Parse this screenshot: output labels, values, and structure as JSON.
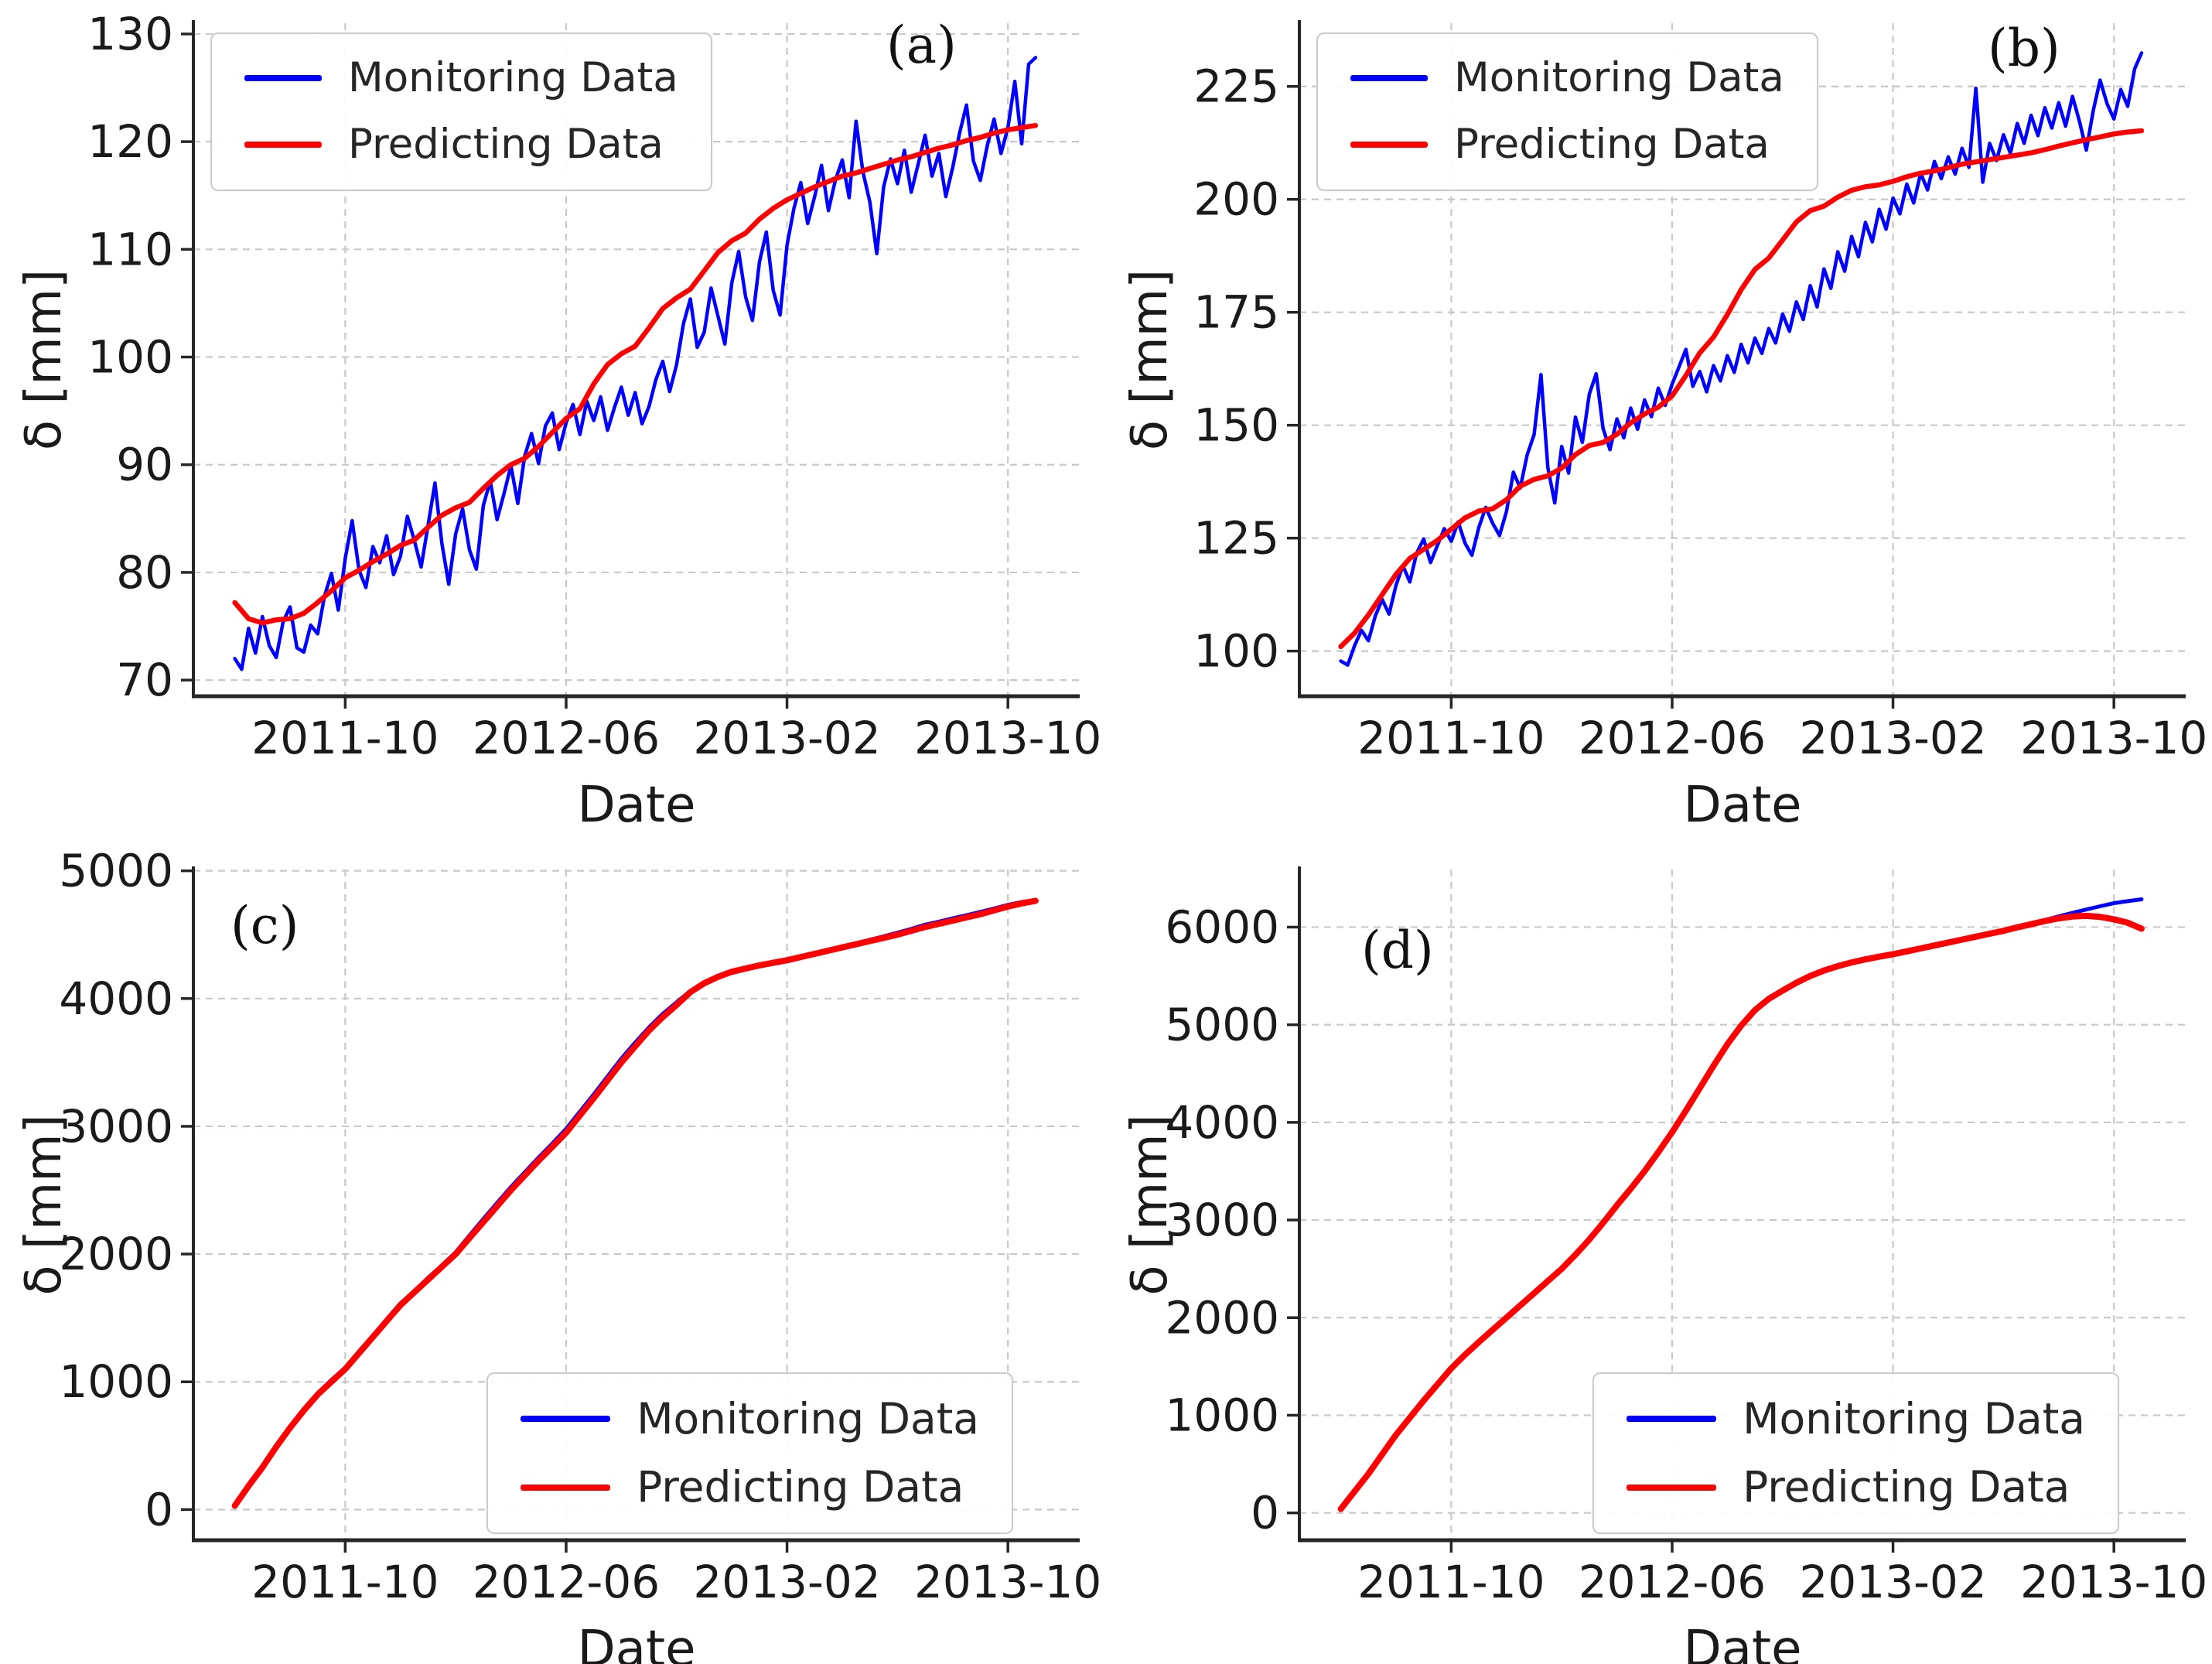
{
  "figure": {
    "background": "#ffffff",
    "grid_color": "#c9c9c9",
    "spine_color": "#262626",
    "text_color": "#1a1a1a"
  },
  "chart_data": [
    {
      "id": "a",
      "panel_label": "(a)",
      "type": "line",
      "xlabel": "Date",
      "ylabel": "δ [mm]",
      "legend_position": "upper-left",
      "grid": true,
      "x_unit": "months since 2011-06",
      "xlim": [
        -1.5,
        30.6
      ],
      "ylim": [
        68.5,
        131
      ],
      "xticks": [
        {
          "v": 4,
          "label": "2011-10"
        },
        {
          "v": 12,
          "label": "2012-06"
        },
        {
          "v": 20,
          "label": "2013-02"
        },
        {
          "v": 28,
          "label": "2013-10"
        }
      ],
      "yticks": [
        70,
        80,
        90,
        100,
        110,
        120,
        130
      ],
      "series": [
        {
          "name": "Monitoring Data",
          "color": "#0000ff",
          "width": 4.5,
          "x": {
            "start": 0,
            "step": 0.25
          },
          "y": [
            72.0,
            71.0,
            74.8,
            72.5,
            75.9,
            73.2,
            72.1,
            75.4,
            76.8,
            73.0,
            72.6,
            75.1,
            74.3,
            77.8,
            79.9,
            76.5,
            81.3,
            84.8,
            80.2,
            78.6,
            82.4,
            80.9,
            83.4,
            79.8,
            81.5,
            85.2,
            83.0,
            80.5,
            84.4,
            88.3,
            82.7,
            78.9,
            83.6,
            85.9,
            82.1,
            80.3,
            86.2,
            88.5,
            84.9,
            87.3,
            89.9,
            86.4,
            90.8,
            92.9,
            90.1,
            93.6,
            94.8,
            91.4,
            93.9,
            95.6,
            92.8,
            95.9,
            94.1,
            96.3,
            93.2,
            95.3,
            97.2,
            94.6,
            96.7,
            93.8,
            95.4,
            97.9,
            99.6,
            96.8,
            99.3,
            103.1,
            105.4,
            100.9,
            102.3,
            106.4,
            103.8,
            101.2,
            106.9,
            109.8,
            105.6,
            103.4,
            108.8,
            111.6,
            106.2,
            103.9,
            110.4,
            113.8,
            116.2,
            112.4,
            114.9,
            117.8,
            113.6,
            116.4,
            118.3,
            114.8,
            121.9,
            117.2,
            114.4,
            109.6,
            115.8,
            118.4,
            116.1,
            119.2,
            115.3,
            117.9,
            120.6,
            116.8,
            118.9,
            114.9,
            117.6,
            120.8,
            123.4,
            118.2,
            116.4,
            119.6,
            122.1,
            118.9,
            121.3,
            125.6,
            119.8,
            127.2,
            127.8
          ]
        },
        {
          "name": "Predicting Data",
          "color": "#ff0000",
          "width": 6.5,
          "x": {
            "start": 0,
            "step": 0.5
          },
          "y": [
            77.2,
            75.7,
            75.3,
            75.6,
            75.7,
            76.2,
            77.2,
            78.3,
            79.5,
            80.2,
            81.0,
            81.7,
            82.5,
            83.0,
            84.2,
            85.3,
            86.0,
            86.5,
            87.8,
            89.0,
            90.0,
            90.6,
            91.7,
            93.0,
            94.3,
            95.2,
            97.5,
            99.3,
            100.3,
            101.0,
            102.7,
            104.5,
            105.5,
            106.3,
            108.0,
            109.7,
            110.8,
            111.5,
            112.8,
            113.8,
            114.6,
            115.2,
            115.8,
            116.3,
            116.8,
            117.1,
            117.5,
            117.9,
            118.3,
            118.6,
            119.0,
            119.4,
            119.7,
            120.1,
            120.4,
            120.8,
            121.1,
            121.3,
            121.5
          ]
        }
      ]
    },
    {
      "id": "b",
      "panel_label": "(b)",
      "type": "line",
      "xlabel": "Date",
      "ylabel": "δ [mm]",
      "legend_position": "upper-left",
      "grid": true,
      "x_unit": "months since 2011-06",
      "xlim": [
        -1.5,
        30.6
      ],
      "ylim": [
        90,
        239
      ],
      "xticks": [
        {
          "v": 4,
          "label": "2011-10"
        },
        {
          "v": 12,
          "label": "2012-06"
        },
        {
          "v": 20,
          "label": "2013-02"
        },
        {
          "v": 28,
          "label": "2013-10"
        }
      ],
      "yticks": [
        100,
        125,
        150,
        175,
        200,
        225
      ],
      "series": [
        {
          "name": "Monitoring Data",
          "color": "#0000ff",
          "width": 4.5,
          "x": {
            "start": 0,
            "step": 0.25
          },
          "y": [
            97.8,
            96.9,
            101.2,
            104.6,
            102.3,
            107.8,
            111.4,
            108.2,
            114.6,
            118.9,
            115.3,
            121.7,
            124.8,
            119.6,
            123.4,
            127.1,
            124.3,
            128.6,
            123.9,
            121.2,
            127.4,
            131.8,
            128.3,
            125.6,
            130.9,
            139.6,
            136.1,
            143.4,
            147.9,
            161.2,
            140.6,
            132.8,
            145.3,
            139.4,
            151.8,
            146.2,
            156.9,
            161.4,
            149.3,
            144.6,
            151.4,
            147.2,
            153.8,
            149.1,
            155.6,
            151.9,
            158.2,
            154.4,
            159.1,
            162.9,
            166.8,
            158.6,
            161.9,
            157.4,
            163.2,
            159.8,
            165.4,
            161.7,
            167.9,
            163.8,
            169.3,
            165.9,
            171.4,
            168.2,
            174.6,
            170.8,
            177.3,
            173.4,
            180.9,
            176.2,
            184.6,
            180.3,
            188.4,
            184.1,
            191.8,
            187.3,
            194.9,
            190.6,
            197.8,
            193.4,
            200.3,
            196.8,
            203.4,
            199.2,
            205.8,
            202.1,
            208.4,
            204.6,
            209.4,
            205.6,
            211.3,
            207.1,
            224.6,
            203.8,
            212.4,
            208.6,
            214.3,
            210.2,
            216.8,
            212.4,
            218.6,
            214.1,
            220.3,
            215.8,
            221.4,
            216.2,
            222.8,
            217.3,
            210.9,
            219.6,
            226.4,
            221.2,
            217.8,
            224.3,
            220.6,
            228.9,
            232.4
          ]
        },
        {
          "name": "Predicting Data",
          "color": "#ff0000",
          "width": 6.5,
          "x": {
            "start": 0,
            "step": 0.5
          },
          "y": [
            101,
            104,
            108,
            112.5,
            117,
            120.5,
            122.5,
            124.5,
            127,
            129.5,
            131,
            131.5,
            133.5,
            136.5,
            138,
            138.8,
            140.5,
            143.5,
            145.5,
            146.2,
            148,
            150.5,
            152.5,
            154,
            156.5,
            161,
            166,
            169.5,
            174.5,
            180,
            184.5,
            187,
            191,
            195,
            197.5,
            198.5,
            200.5,
            202,
            202.8,
            203.2,
            204,
            205,
            205.8,
            206.3,
            207,
            207.8,
            208.3,
            208.8,
            209.3,
            209.8,
            210.3,
            211,
            211.8,
            212.5,
            213.2,
            213.8,
            214.5,
            214.9,
            215.2
          ]
        }
      ]
    },
    {
      "id": "c",
      "panel_label": "(c)",
      "type": "line",
      "xlabel": "Date",
      "ylabel": "δ [mm]",
      "legend_position": "lower-right",
      "grid": true,
      "x_unit": "months since 2011-06",
      "xlim": [
        -1.5,
        30.6
      ],
      "ylim": [
        -240,
        5010
      ],
      "xticks": [
        {
          "v": 4,
          "label": "2011-10"
        },
        {
          "v": 12,
          "label": "2012-06"
        },
        {
          "v": 20,
          "label": "2013-02"
        },
        {
          "v": 28,
          "label": "2013-10"
        }
      ],
      "yticks": [
        0,
        1000,
        2000,
        3000,
        4000,
        5000
      ],
      "series": [
        {
          "name": "Monitoring Data",
          "color": "#0000ff",
          "width": 5,
          "x": {
            "start": 0,
            "step": 0.5
          },
          "y": [
            35,
            190,
            345,
            495,
            650,
            790,
            910,
            1015,
            1110,
            1240,
            1360,
            1490,
            1615,
            1710,
            1815,
            1910,
            2015,
            2145,
            2275,
            2400,
            2525,
            2640,
            2755,
            2865,
            2980,
            3115,
            3250,
            3390,
            3530,
            3655,
            3775,
            3880,
            3970,
            4060,
            4125,
            4165,
            4200,
            4228,
            4255,
            4278,
            4300,
            4328,
            4355,
            4380,
            4408,
            4432,
            4460,
            4487,
            4515,
            4545,
            4578,
            4602,
            4628,
            4652,
            4678,
            4705,
            4733,
            4755,
            4772
          ]
        },
        {
          "name": "Predicting Data",
          "color": "#ff0000",
          "width": 8,
          "x": {
            "start": 0,
            "step": 0.5
          },
          "y": [
            30,
            185,
            330,
            490,
            640,
            775,
            900,
            1000,
            1100,
            1225,
            1350,
            1475,
            1600,
            1700,
            1800,
            1900,
            2000,
            2125,
            2250,
            2375,
            2500,
            2615,
            2730,
            2840,
            2950,
            3085,
            3220,
            3360,
            3500,
            3625,
            3750,
            3855,
            3950,
            4050,
            4120,
            4170,
            4210,
            4235,
            4260,
            4280,
            4300,
            4325,
            4350,
            4375,
            4400,
            4425,
            4450,
            4475,
            4500,
            4530,
            4560,
            4585,
            4610,
            4635,
            4660,
            4690,
            4720,
            4745,
            4765
          ]
        }
      ]
    },
    {
      "id": "d",
      "panel_label": "(d)",
      "type": "line",
      "xlabel": "Date",
      "ylabel": "δ [mm]",
      "legend_position": "lower-right",
      "grid": true,
      "x_unit": "months since 2011-06",
      "xlim": [
        -1.5,
        30.6
      ],
      "ylim": [
        -280,
        6590
      ],
      "xticks": [
        {
          "v": 4,
          "label": "2011-10"
        },
        {
          "v": 12,
          "label": "2012-06"
        },
        {
          "v": 20,
          "label": "2013-02"
        },
        {
          "v": 28,
          "label": "2013-10"
        }
      ],
      "yticks": [
        0,
        1000,
        2000,
        3000,
        4000,
        5000,
        6000
      ],
      "series": [
        {
          "name": "Monitoring Data",
          "color": "#0000ff",
          "width": 5,
          "x": {
            "start": 0,
            "step": 0.5
          },
          "y": [
            40,
            220,
            400,
            600,
            800,
            975,
            1150,
            1315,
            1480,
            1620,
            1750,
            1875,
            2000,
            2125,
            2250,
            2375,
            2500,
            2645,
            2800,
            2970,
            3150,
            3320,
            3500,
            3695,
            3900,
            4120,
            4350,
            4580,
            4800,
            4990,
            5150,
            5265,
            5350,
            5430,
            5500,
            5555,
            5600,
            5638,
            5670,
            5697,
            5722,
            5752,
            5782,
            5812,
            5842,
            5872,
            5902,
            5932,
            5962,
            6000,
            6035,
            6072,
            6110,
            6146,
            6180,
            6214,
            6245,
            6266,
            6285
          ]
        },
        {
          "name": "Predicting Data",
          "color": "#ff0000",
          "width": 8,
          "x": {
            "start": 0,
            "step": 0.5
          },
          "y": [
            40,
            220,
            400,
            600,
            800,
            975,
            1150,
            1315,
            1480,
            1620,
            1750,
            1875,
            2000,
            2125,
            2250,
            2375,
            2500,
            2645,
            2800,
            2970,
            3150,
            3320,
            3500,
            3695,
            3900,
            4120,
            4350,
            4580,
            4800,
            4990,
            5150,
            5265,
            5350,
            5430,
            5500,
            5555,
            5600,
            5638,
            5670,
            5697,
            5722,
            5752,
            5782,
            5812,
            5842,
            5872,
            5902,
            5932,
            5962,
            5997,
            6030,
            6062,
            6090,
            6108,
            6115,
            6105,
            6080,
            6045,
            5985
          ]
        }
      ]
    }
  ]
}
